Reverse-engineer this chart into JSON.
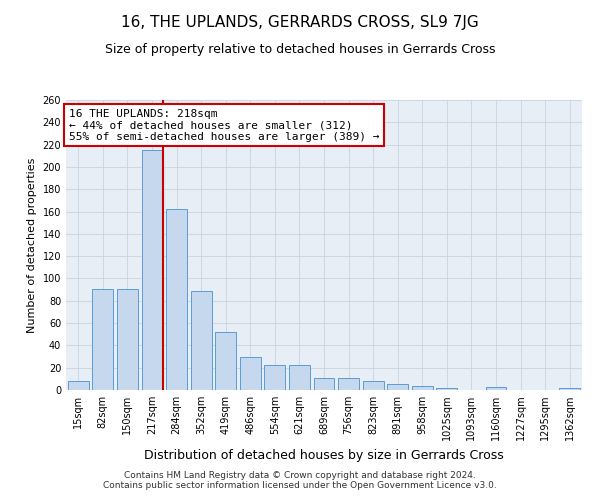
{
  "title": "16, THE UPLANDS, GERRARDS CROSS, SL9 7JG",
  "subtitle": "Size of property relative to detached houses in Gerrards Cross",
  "xlabel": "Distribution of detached houses by size in Gerrards Cross",
  "ylabel": "Number of detached properties",
  "categories": [
    "15sqm",
    "82sqm",
    "150sqm",
    "217sqm",
    "284sqm",
    "352sqm",
    "419sqm",
    "486sqm",
    "554sqm",
    "621sqm",
    "689sqm",
    "756sqm",
    "823sqm",
    "891sqm",
    "958sqm",
    "1025sqm",
    "1093sqm",
    "1160sqm",
    "1227sqm",
    "1295sqm",
    "1362sqm"
  ],
  "values": [
    8,
    91,
    91,
    215,
    162,
    89,
    52,
    30,
    22,
    22,
    11,
    11,
    8,
    5,
    4,
    2,
    0,
    3,
    0,
    0,
    2
  ],
  "bar_color": "#c5d8ed",
  "bar_edge_color": "#5b9bd5",
  "vline_x_index": 3,
  "vline_color": "#cc0000",
  "annotation_text": "16 THE UPLANDS: 218sqm\n← 44% of detached houses are smaller (312)\n55% of semi-detached houses are larger (389) →",
  "annotation_box_color": "#ffffff",
  "annotation_box_edge_color": "#cc0000",
  "ylim": [
    0,
    260
  ],
  "yticks": [
    0,
    20,
    40,
    60,
    80,
    100,
    120,
    140,
    160,
    180,
    200,
    220,
    240,
    260
  ],
  "grid_color": "#c8d4e0",
  "bg_color": "#e8eef5",
  "footer": "Contains HM Land Registry data © Crown copyright and database right 2024.\nContains public sector information licensed under the Open Government Licence v3.0.",
  "title_fontsize": 11,
  "subtitle_fontsize": 9,
  "xlabel_fontsize": 9,
  "ylabel_fontsize": 8,
  "tick_fontsize": 7,
  "annotation_fontsize": 8,
  "footer_fontsize": 6.5
}
